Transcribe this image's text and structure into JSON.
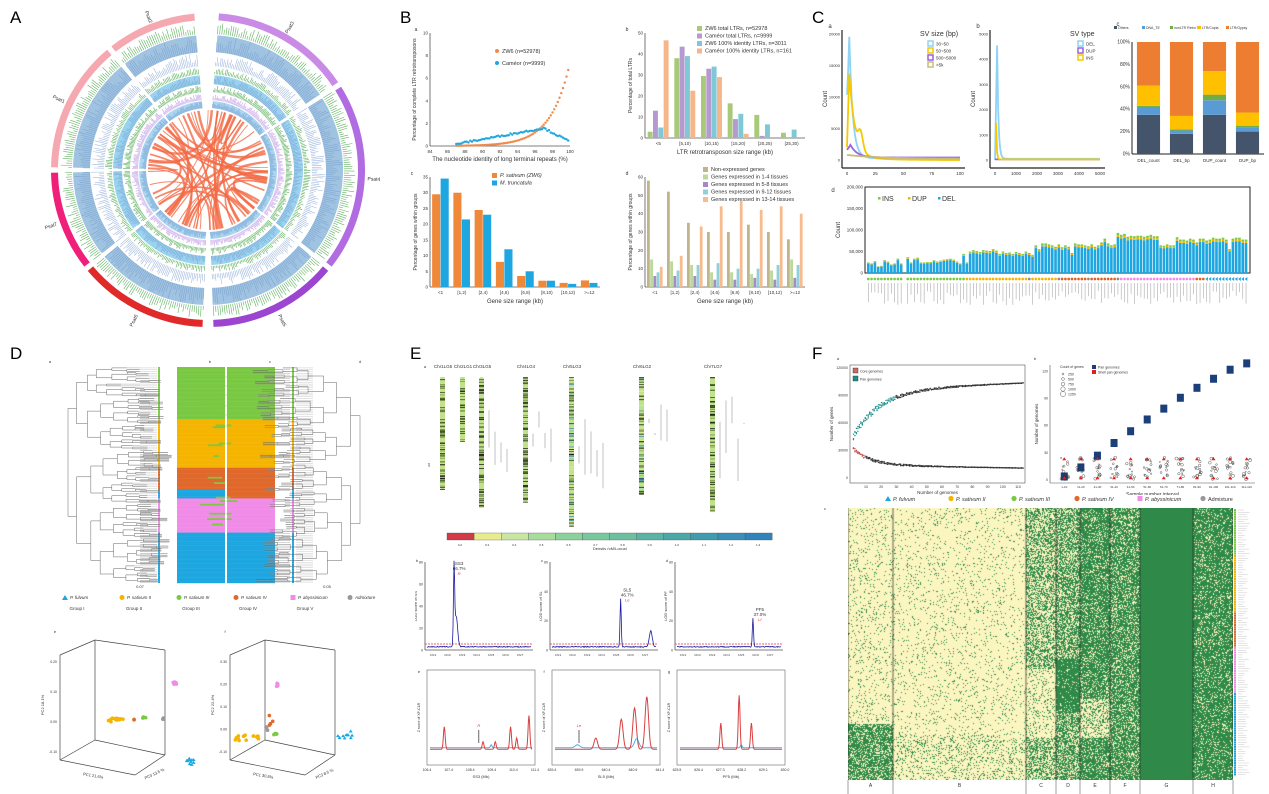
{
  "panels": {
    "A": {
      "label": "A",
      "chromosomes": [
        "Psat1",
        "Psat2",
        "Psat3",
        "Psat4",
        "Psat5",
        "Psat6",
        "Psat7"
      ],
      "tracks": [
        "a",
        "b",
        "c",
        "d",
        "e",
        "f",
        "g",
        "h"
      ]
    },
    "B": {
      "label": "B",
      "a": {
        "tag": "a",
        "xlabel": "The nucleotide identity of long terminal repeats (%)",
        "ylabel": "Percentage of complete LTR retrotransposons",
        "xticks": [
          84,
          86,
          88,
          90,
          92,
          94,
          96,
          98,
          100
        ],
        "yticks": [
          0,
          2,
          4,
          6,
          8,
          10
        ],
        "legend": [
          "ZW6 (n=52978)",
          "Caméor (n=9999)"
        ],
        "colors": [
          "#f08a4b",
          "#1fa7e0"
        ]
      },
      "b": {
        "tag": "b",
        "xlabel": "LTR retrotransposon size range (kb)",
        "ylabel": "Percentage of total LTRs",
        "ylim": [
          0,
          50
        ],
        "yticks": [
          0,
          10,
          20,
          30,
          40,
          50
        ],
        "categories": [
          "<5",
          "[5,10)",
          "[10,15)",
          "[15,20)",
          "[20,25)",
          "[25,30)"
        ],
        "series": [
          {
            "name": "ZW6 total LTRs, n=52978",
            "color": "#a9c97a",
            "values": [
              3,
              38,
              29.5,
              16.5,
              11,
              2.5
            ]
          },
          {
            "name": "Caméor total LTRs, n=9999",
            "color": "#b59ad1",
            "values": [
              13,
              43.5,
              33,
              9,
              1,
              0
            ]
          },
          {
            "name": "ZW6 100% identity LTRs, n=3011",
            "color": "#7fc8d6",
            "values": [
              5,
              39,
              34,
              11.5,
              6.5,
              4
            ]
          },
          {
            "name": "Caméor 100% identity LTRs, n=161",
            "color": "#f5b689",
            "values": [
              46.5,
              22.5,
              29,
              2,
              0,
              0
            ]
          }
        ]
      },
      "c": {
        "tag": "c",
        "xlabel": "Gene size range (kb)",
        "ylabel": "Percentage of genes within groups",
        "ylim": [
          0,
          35
        ],
        "yticks": [
          0,
          5,
          10,
          15,
          20,
          25,
          30,
          35
        ],
        "categories": [
          "<1",
          "[1,2)",
          "[2,4)",
          "[4,6)",
          "[6,8)",
          "[8,10)",
          "[10,12)",
          ">=12"
        ],
        "series": [
          {
            "name": "P. sativum (ZW6)",
            "color": "#f0883a",
            "values": [
              29.5,
              30,
              24.5,
              8,
              3.5,
              2,
              1.3,
              2.1
            ]
          },
          {
            "name": "M. truncatula",
            "color": "#1ea6e0",
            "values": [
              34.5,
              21.5,
              23,
              12,
              5,
              2,
              1,
              1.3
            ]
          }
        ]
      },
      "d": {
        "tag": "d",
        "xlabel": "Gene size range (kb)",
        "ylabel": "Percentage of genes within groups",
        "ylim": [
          0,
          60
        ],
        "yticks": [
          0,
          10,
          20,
          30,
          40,
          50,
          60
        ],
        "categories": [
          "<1",
          "[1,2)",
          "[2,4)",
          "[4,6)",
          "[6,8)",
          "[8,10)",
          "[10,12)",
          ">=12"
        ],
        "series": [
          {
            "name": "Non-expressed genes",
            "color": "#bfb48a",
            "values": [
              58,
              52,
              35,
              30,
              30,
              34,
              30,
              26
            ]
          },
          {
            "name": "Genes expressed in 1-4 tissues",
            "color": "#bcd89a",
            "values": [
              15,
              14,
              12,
              8,
              8,
              7,
              9,
              15
            ]
          },
          {
            "name": "Genes expressed in 5-8 tissues",
            "color": "#a58ac8",
            "values": [
              6,
              6,
              6,
              4,
              4,
              5,
              4,
              5
            ]
          },
          {
            "name": "Genes expressed in 9-12 tissues",
            "color": "#8fd0dc",
            "values": [
              8,
              9,
              12,
              13,
              10,
              10,
              12,
              12
            ]
          },
          {
            "name": "Genes expressed in 13-14 tissues",
            "color": "#f6bb8e",
            "values": [
              11,
              17,
              33,
              44,
              47,
              42,
              44,
              40
            ]
          }
        ]
      }
    },
    "C": {
      "label": "C",
      "a": {
        "tag": "a",
        "xlabel": "Variation frequency (%)",
        "ylabel": "Count",
        "legend_title": "SV size (bp)",
        "legend": [
          "30~50",
          "50~500",
          "500~5000",
          ">5k"
        ],
        "colors": [
          "#8fd3f4",
          "#f5c800",
          "#9a63e0",
          "#c8bb7a"
        ],
        "xticks": [
          0,
          25,
          50,
          75,
          100
        ],
        "yticks": [
          0,
          5000,
          10000,
          15000,
          20000
        ]
      },
      "b": {
        "tag": "b",
        "xlabel": "SV length (bp)",
        "ylabel": "Count",
        "legend_title": "SV type",
        "legend": [
          "DEL",
          "DUP",
          "INS"
        ],
        "colors": [
          "#8fd3f4",
          "#9a63e0",
          "#f5c800"
        ],
        "xticks": [
          0,
          1000,
          2000,
          3000,
          4000,
          5000
        ],
        "yticks": [
          0,
          1000,
          2000,
          3000,
          4000,
          5000
        ]
      },
      "c": {
        "tag": "c",
        "yticks": [
          "0%",
          "20%",
          "40%",
          "60%",
          "80%",
          "100%"
        ],
        "categories": [
          "DEL_count",
          "DEL_bp",
          "DUP_count",
          "DUP_bp"
        ],
        "series": [
          {
            "name": "Others",
            "color": "#44546a",
            "values": [
              35,
              18,
              35,
              20
            ]
          },
          {
            "name": "DNA_TE",
            "color": "#5b9bd5",
            "values": [
              7,
              3,
              13,
              4
            ]
          },
          {
            "name": "nonLTR Retro TE",
            "color": "#70ad47",
            "values": [
              1,
              1,
              5,
              1
            ]
          },
          {
            "name": "LTR/Copia",
            "color": "#ffc000",
            "values": [
              18,
              12,
              21,
              12
            ]
          },
          {
            "name": "LTR/Gypsy",
            "color": "#ed7d31",
            "values": [
              39,
              66,
              26,
              63
            ]
          }
        ]
      },
      "d": {
        "tag": "d",
        "ylabel": "Count",
        "yticks": [
          "0",
          "50,000",
          "100,000",
          "150,000",
          "200,000"
        ],
        "legend": [
          "INS",
          "DUP",
          "DEL"
        ],
        "colors": [
          "#7ac943",
          "#f5b400",
          "#1ea6e0"
        ],
        "del_values_k": [
          22,
          20,
          25,
          14,
          15,
          27,
          24,
          18,
          20,
          30,
          20,
          0,
          33,
          22,
          30,
          32,
          22,
          22,
          23,
          23,
          27,
          24,
          26,
          28,
          29,
          30,
          28,
          24,
          20,
          40,
          22,
          45,
          48,
          46,
          44,
          48,
          47,
          46,
          50,
          47,
          40,
          45,
          42,
          43,
          40,
          44,
          42,
          40,
          45,
          42,
          38,
          58,
          50,
          62,
          62,
          60,
          58,
          55,
          60,
          54,
          58,
          55,
          42,
          62,
          60,
          60,
          58,
          56,
          60,
          55,
          58,
          64,
          72,
          62,
          58,
          60,
          84,
          80,
          82,
          76,
          78,
          77,
          78,
          78,
          76,
          78,
          80,
          77,
          77,
          58,
          57,
          60,
          58,
          58,
          75,
          70,
          70,
          68,
          72,
          70,
          64,
          72,
          72,
          68,
          70,
          74,
          72,
          72,
          74,
          70,
          50,
          72,
          74,
          74,
          70,
          70
        ],
        "group_colors": [
          "#7ac943",
          "#f5b400",
          "#e06020",
          "#f08ce8",
          "#1ea6e0",
          "#888888"
        ]
      }
    },
    "D": {
      "label": "D",
      "tags": [
        "a",
        "b",
        "c",
        "d",
        "e",
        "f"
      ],
      "scale_labels": [
        "0.07",
        "0.05"
      ],
      "legend": [
        {
          "name": "P. fulvum",
          "group": "Group I",
          "color": "#1ea6e0",
          "shape": "triangle"
        },
        {
          "name": "P. sativum II",
          "group": "Group II",
          "color": "#f5b400",
          "shape": "circle"
        },
        {
          "name": "P. sativum III",
          "group": "Group III",
          "color": "#7ac943",
          "shape": "circle"
        },
        {
          "name": "P. sativum IV",
          "group": "Group IV",
          "color": "#e0682a",
          "shape": "circle"
        },
        {
          "name": "P. abyssinicum",
          "group": "Group V",
          "color": "#f08ce8",
          "shape": "square"
        },
        {
          "name": "Admixture",
          "group": "",
          "color": "#999999",
          "shape": "circle"
        }
      ],
      "pca_e": {
        "x": "PC1 21.6%",
        "y": "PC2 18.1%",
        "z": "PC3 13.5 %",
        "yticks": [
          "-0.10",
          "0.00",
          "0.10",
          "0.20"
        ]
      },
      "pca_f": {
        "x": "PC1 30.8%",
        "y": "PC2 22.4%",
        "z": "PC3 8.5 %",
        "yticks": [
          "-0.10",
          "0.00",
          "0.10",
          "0.20",
          "0.30"
        ]
      }
    },
    "E": {
      "label": "E",
      "a": {
        "tag": "a",
        "chromosomes": [
          "Chr1LG6",
          "Chr2LG1",
          "Chr3LG5",
          "Chr4LG4",
          "Chr5LG3",
          "Chr6LG2",
          "Chr7LG7"
        ],
        "colorbar_label": "Density (cM/Locus)",
        "colorbar_ticks": [
          "0.2",
          "0.3",
          "0.4",
          "0.5",
          "0.6",
          "0.7",
          "0.8",
          "0.9",
          "1.0",
          "1.1",
          "1.2",
          "1.3"
        ]
      },
      "lod": [
        {
          "tag": "b",
          "ylabel": "LOD score of SS",
          "peak": "SS3",
          "pct": "66.7%",
          "marker": "R",
          "yticks": [
            "0",
            "20",
            "40",
            "60",
            "80"
          ]
        },
        {
          "tag": "c",
          "ylabel": "LOD score of SL",
          "peak": "SL5",
          "pct": "46.7%",
          "marker": "Le",
          "yticks": [
            "0",
            "20",
            "40",
            "60"
          ]
        },
        {
          "tag": "d",
          "ylabel": "LOD score of PF",
          "peak": "PF5",
          "pct": "37.0%",
          "marker": "Lf",
          "yticks": [
            "0",
            "20",
            "40",
            "60"
          ]
        }
      ],
      "chr_ticks": [
        "Chr1",
        "Chr2",
        "Chr3",
        "Chr4",
        "Chr5",
        "Chr6",
        "Chr7"
      ],
      "xpclr": [
        {
          "tag": "e",
          "ylabel": "Z score of XP-CLR",
          "xlabel": "SS3 (Mb)",
          "xticks": [
            "106.4",
            "107.4",
            "108.4",
            "109.4",
            "110.4",
            "111.4"
          ],
          "marker": "R"
        },
        {
          "tag": "f",
          "ylabel": "Z score of XP-CLR",
          "xlabel": "SL5 (Mb)",
          "xticks": [
            "639.4",
            "639.9",
            "640.4",
            "640.9",
            "641.4"
          ],
          "marker": "Le"
        },
        {
          "tag": "g",
          "ylabel": "Z score of XP-CLR",
          "xlabel": "PF5 (Mb)",
          "xticks": [
            "625.5",
            "626.4",
            "627.3",
            "628.2",
            "629.1",
            "630.0"
          ],
          "marker": ""
        }
      ]
    },
    "F": {
      "label": "F",
      "a": {
        "tag": "a",
        "xlabel": "Number of genomes",
        "ylabel": "Number of genes",
        "legend": [
          "Core genomes",
          "Pan genomes"
        ],
        "xticks": [
          "10",
          "20",
          "30",
          "40",
          "50",
          "60",
          "70",
          "80",
          "90",
          "100",
          "110"
        ],
        "yticks": [
          "0",
          "30000",
          "60000",
          "90000",
          "120000"
        ]
      },
      "b": {
        "tag": "b",
        "xlabel": "Sample number interval",
        "ylabel": "Number of genomes",
        "legend_title": "Count of genes",
        "sizes": [
          "250",
          "500",
          "750",
          "1000",
          "1250"
        ],
        "legend": [
          "Pan genomes",
          "Shell pan genomes"
        ],
        "intervals": [
          "1-10",
          "11-20",
          "21-30",
          "31-40",
          "41-50",
          "51-60",
          "61-70",
          "71-80",
          "81-90",
          "91-100",
          "101-110",
          "111-116"
        ],
        "pan_values": [
          5,
          15,
          28,
          42,
          55,
          68,
          80,
          92,
          103,
          113,
          123,
          130
        ]
      },
      "c": {
        "tag": "c",
        "column_groups": [
          "A",
          "B",
          "C",
          "D",
          "E",
          "F",
          "G",
          "H"
        ]
      }
    }
  }
}
